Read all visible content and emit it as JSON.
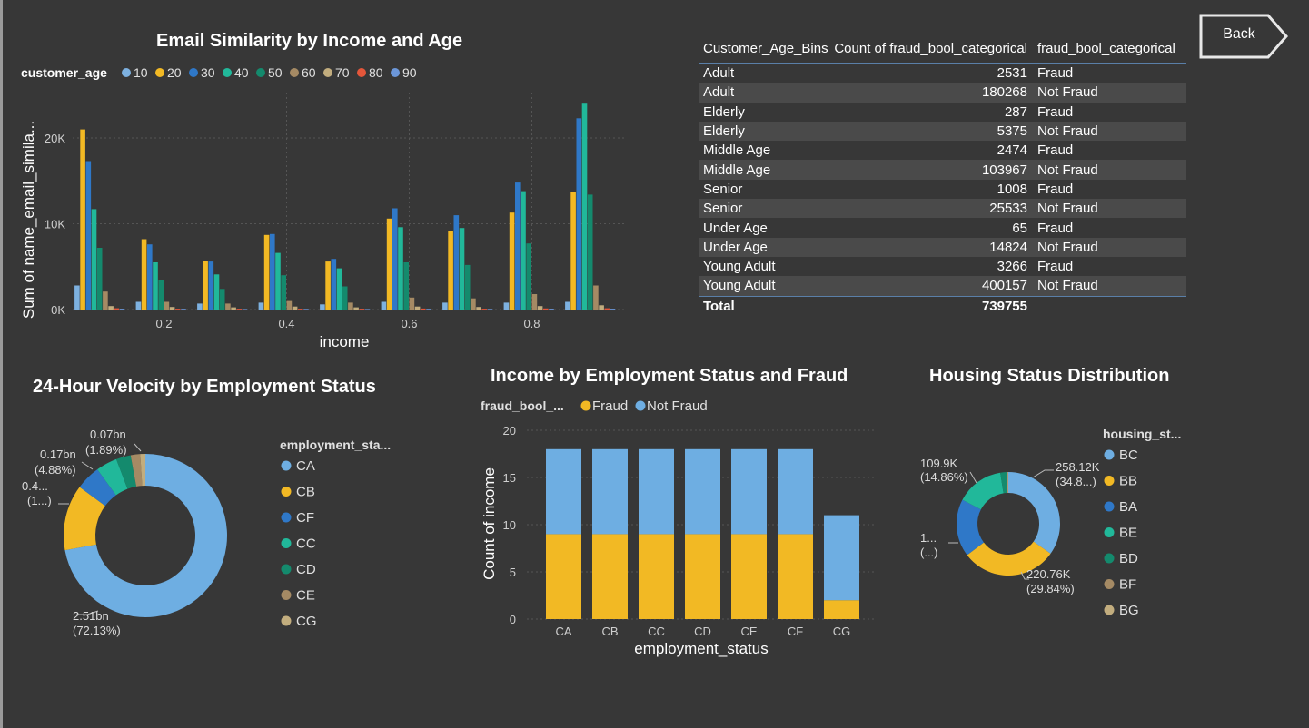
{
  "back_label": "Back",
  "colors": {
    "a10": "#7db1e0",
    "a20": "#f2b924",
    "a30": "#2f78c8",
    "a40": "#21b89a",
    "a50": "#148a6d",
    "a60": "#a58a64",
    "a70": "#c2ad7e",
    "a80": "#e4563a",
    "a90": "#6c97d9",
    "fraud": "#f2b924",
    "not_fraud": "#6eaee2",
    "CA": "#6eaee2",
    "CB": "#f2b924",
    "CF": "#2f78c8",
    "CC": "#21b89a",
    "CD": "#148a6d",
    "CE": "#a58a64",
    "CG": "#c2ad7e",
    "BC": "#6eaee2",
    "BB": "#f2b924",
    "BA": "#2f78c8",
    "BE": "#21b89a",
    "BD": "#148a6d",
    "BF": "#a58a64",
    "BG": "#c2ad7e"
  },
  "email_chart": {
    "title": "Email Similarity by Income and Age",
    "legend_title": "customer_age",
    "legend": [
      "10",
      "20",
      "30",
      "40",
      "50",
      "60",
      "70",
      "80",
      "90"
    ],
    "ylabel": "Sum of name_email_simila...",
    "xlabel": "income"
  },
  "table": {
    "headers": [
      "Customer_Age_Bins",
      "Count of fraud_bool_categorical",
      "fraud_bool_categorical"
    ],
    "rows": [
      [
        "Adult",
        "2531",
        "Fraud"
      ],
      [
        "Adult",
        "180268",
        "Not Fraud"
      ],
      [
        "Elderly",
        "287",
        "Fraud"
      ],
      [
        "Elderly",
        "5375",
        "Not Fraud"
      ],
      [
        "Middle Age",
        "2474",
        "Fraud"
      ],
      [
        "Middle Age",
        "103967",
        "Not Fraud"
      ],
      [
        "Senior",
        "1008",
        "Fraud"
      ],
      [
        "Senior",
        "25533",
        "Not Fraud"
      ],
      [
        "Under Age",
        "65",
        "Fraud"
      ],
      [
        "Under Age",
        "14824",
        "Not Fraud"
      ],
      [
        "Young Adult",
        "3266",
        "Fraud"
      ],
      [
        "Young Adult",
        "400157",
        "Not Fraud"
      ]
    ],
    "total_label": "Total",
    "total_value": "739755"
  },
  "velocity_chart": {
    "title": "24-Hour Velocity by Employment Status",
    "legend_title": "employment_sta...",
    "legend": [
      "CA",
      "CB",
      "CF",
      "CC",
      "CD",
      "CE",
      "CG"
    ]
  },
  "income_chart": {
    "title": "Income by Employment Status and Fraud",
    "legend_title": "fraud_bool_...",
    "legend": [
      "Fraud",
      "Not Fraud"
    ],
    "ylabel": "Count of income",
    "xlabel": "employment_status"
  },
  "housing_chart": {
    "title": "Housing Status Distribution",
    "legend_title": "housing_st...",
    "legend": [
      "BC",
      "BB",
      "BA",
      "BE",
      "BD",
      "BF",
      "BG"
    ]
  },
  "chart_data": [
    {
      "type": "bar",
      "id": "email",
      "x_ticks": [
        "0.2",
        "0.4",
        "0.6",
        "0.8"
      ],
      "y_ticks": [
        "0K",
        "10K",
        "20K"
      ],
      "ylim": [
        0,
        25000
      ],
      "series_names": [
        "10",
        "20",
        "30",
        "40",
        "50",
        "60",
        "70",
        "80",
        "90"
      ],
      "groups": [
        {
          "x": 0.1,
          "values": [
            2800,
            21000,
            17300,
            11700,
            7200,
            2100,
            400,
            150,
            100
          ]
        },
        {
          "x": 0.2,
          "values": [
            900,
            8200,
            7600,
            5500,
            3400,
            900,
            300,
            100,
            80
          ]
        },
        {
          "x": 0.3,
          "values": [
            700,
            5700,
            5600,
            4100,
            2400,
            700,
            250,
            100,
            60
          ]
        },
        {
          "x": 0.4,
          "values": [
            800,
            8700,
            8800,
            6600,
            4000,
            1000,
            350,
            100,
            70
          ]
        },
        {
          "x": 0.5,
          "values": [
            600,
            5600,
            5900,
            4800,
            2700,
            800,
            250,
            100,
            60
          ]
        },
        {
          "x": 0.6,
          "values": [
            900,
            10600,
            11800,
            9600,
            5500,
            1400,
            350,
            120,
            80
          ]
        },
        {
          "x": 0.7,
          "values": [
            800,
            9100,
            11000,
            9500,
            5200,
            1300,
            300,
            100,
            70
          ]
        },
        {
          "x": 0.8,
          "values": [
            800,
            11300,
            14800,
            13800,
            7700,
            1800,
            400,
            130,
            90
          ]
        },
        {
          "x": 0.9,
          "values": [
            900,
            13700,
            22300,
            24000,
            13400,
            2800,
            500,
            150,
            100
          ]
        }
      ]
    },
    {
      "type": "pie",
      "id": "velocity",
      "labels": [
        "CA",
        "CB",
        "CF",
        "CC",
        "CD",
        "CE",
        "CG"
      ],
      "values": [
        72.13,
        13.0,
        4.88,
        4.2,
        2.9,
        1.89,
        1.0
      ],
      "data_labels": [
        {
          "value": "2.51bn",
          "pct": "(72.13%)"
        },
        {
          "value": "0.4...",
          "pct": "(1...)"
        },
        {
          "value": "0.17bn",
          "pct": "(4.88%)"
        },
        {
          "value": "0.07bn",
          "pct": "(1.89%)"
        }
      ]
    },
    {
      "type": "bar",
      "id": "income",
      "stacked": true,
      "categories": [
        "CA",
        "CB",
        "CC",
        "CD",
        "CE",
        "CF",
        "CG"
      ],
      "series": [
        {
          "name": "Fraud",
          "values": [
            9,
            9,
            9,
            9,
            9,
            9,
            2
          ]
        },
        {
          "name": "Not Fraud",
          "values": [
            9,
            9,
            9,
            9,
            9,
            9,
            9
          ]
        }
      ],
      "y_ticks": [
        "0",
        "5",
        "10",
        "15",
        "20"
      ],
      "ylim": [
        0,
        20
      ]
    },
    {
      "type": "pie",
      "id": "housing",
      "labels": [
        "BC",
        "BB",
        "BA",
        "BE",
        "BD",
        "BF",
        "BG"
      ],
      "values": [
        34.8,
        29.84,
        18.0,
        14.86,
        2.0,
        0.3,
        0.2
      ],
      "data_labels": [
        {
          "value": "258.12K",
          "pct": "(34.8...)"
        },
        {
          "value": "220.76K",
          "pct": "(29.84%)"
        },
        {
          "value": "1...",
          "pct": "(...)"
        },
        {
          "value": "109.9K",
          "pct": "(14.86%)"
        }
      ]
    }
  ]
}
